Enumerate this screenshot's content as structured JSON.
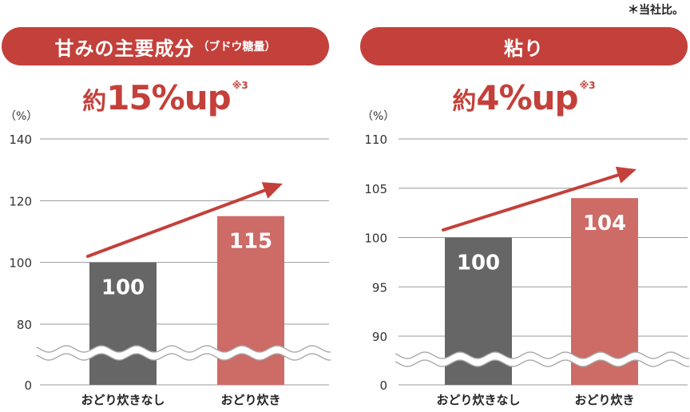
{
  "note": "＊当社比。",
  "colors": {
    "accent": "#c4403a",
    "bar_dark": "#666666",
    "bar_light": "#cd6b66"
  },
  "chart_data": [
    {
      "type": "bar",
      "title": "甘みの主要成分",
      "subtitle": "（ブドウ糖量）",
      "headline": {
        "prefix": "約",
        "value": "15%up",
        "footnote": "※3"
      },
      "unit_label": "（%）",
      "categories": [
        "おどり炊きなし",
        "おどり炊き"
      ],
      "values": [
        100,
        115
      ],
      "value_labels": [
        "100",
        "115"
      ],
      "y_ticks": [
        "140",
        "120",
        "100",
        "80",
        "0"
      ],
      "ylim": [
        0,
        140
      ],
      "axis_break": "between 0 and 80",
      "grid": true,
      "legend": "none"
    },
    {
      "type": "bar",
      "title": "粘り",
      "subtitle": "",
      "headline": {
        "prefix": "約",
        "value": "4%up",
        "footnote": "※3"
      },
      "unit_label": "（%）",
      "categories": [
        "おどり炊きなし",
        "おどり炊き"
      ],
      "values": [
        100,
        104
      ],
      "value_labels": [
        "100",
        "104"
      ],
      "y_ticks": [
        "110",
        "105",
        "100",
        "95",
        "90",
        "0"
      ],
      "ylim": [
        0,
        110
      ],
      "axis_break": "between 0 and 90",
      "grid": true,
      "legend": "none"
    }
  ]
}
